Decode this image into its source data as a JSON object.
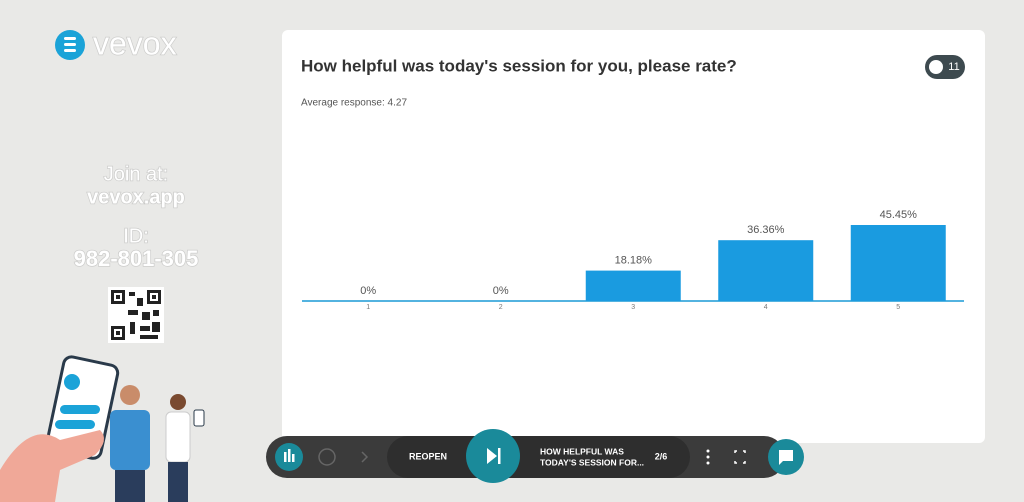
{
  "sidebar": {
    "logo": "vevox",
    "join_label": "Join at:",
    "join_url": "vevox.app",
    "id_label": "ID:",
    "id": "982-801-305"
  },
  "participants": 11,
  "chart_data": {
    "type": "bar",
    "title": "How helpful was today's session for you, please rate?",
    "subtitle": "Average response: 4.27",
    "categories": [
      "1",
      "2",
      "3",
      "4",
      "5"
    ],
    "values": [
      0,
      0,
      18.18,
      36.36,
      45.45
    ],
    "value_labels": [
      "0%",
      "0%",
      "18.18%",
      "36.36%",
      "45.45%"
    ],
    "color": "#1a9be0"
  },
  "toolbar": {
    "reopen": "REOPEN",
    "question": [
      "HOW HELPFUL WAS",
      "TODAY'S SESSION FOR..."
    ],
    "position": "2/6"
  }
}
